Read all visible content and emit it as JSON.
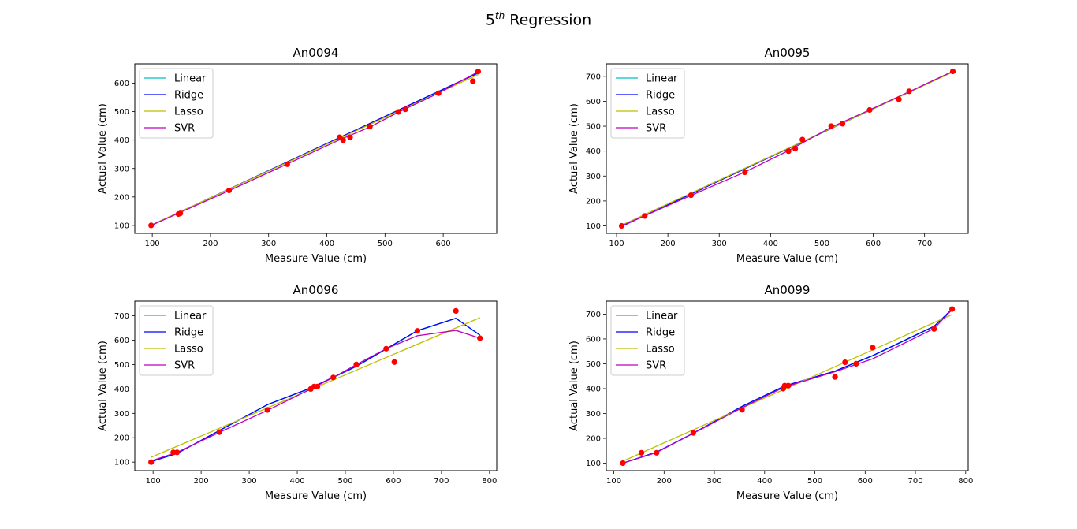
{
  "figure": {
    "title_base": "5",
    "title_sup": "th",
    "title_rest": " Regression"
  },
  "legend_items": [
    {
      "name": "Linear",
      "color": "#00BFBF"
    },
    {
      "name": "Ridge",
      "color": "#0000FF"
    },
    {
      "name": "Lasso",
      "color": "#BFBF00"
    },
    {
      "name": "SVR",
      "color": "#BF00BF"
    }
  ],
  "point_color": "#FF0000",
  "chart_data": [
    {
      "type": "line",
      "title": "An0094",
      "xlabel": "Measure Value (cm)",
      "ylabel": "Actual Value (cm)",
      "xlim": [
        70,
        692
      ],
      "ylim": [
        72,
        668
      ],
      "xticks": [
        100,
        200,
        300,
        400,
        500,
        600
      ],
      "yticks": [
        100,
        200,
        300,
        400,
        500,
        600
      ],
      "legend": "top-left",
      "scatter": {
        "x": [
          98,
          145,
          148,
          232,
          332,
          422,
          428,
          440,
          474,
          523,
          535,
          592,
          651,
          660
        ],
        "y": [
          100,
          140,
          142,
          223,
          315,
          410,
          400,
          410,
          447,
          499,
          508,
          565,
          607,
          641
        ]
      },
      "series": [
        {
          "name": "Linear",
          "x": [
            98,
            660
          ],
          "y": [
            100,
            635
          ]
        },
        {
          "name": "Ridge",
          "x": [
            98,
            660
          ],
          "y": [
            100,
            636
          ]
        },
        {
          "name": "Lasso",
          "x": [
            98,
            660
          ],
          "y": [
            101,
            630
          ]
        },
        {
          "name": "SVR",
          "x": [
            98,
            232,
            332,
            422,
            474,
            523,
            592,
            660
          ],
          "y": [
            100,
            222,
            316,
            401,
            446,
            498,
            565,
            640
          ]
        }
      ]
    },
    {
      "type": "line",
      "title": "An0095",
      "xlabel": "Measure Value (cm)",
      "ylabel": "Actual Value (cm)",
      "xlim": [
        80,
        785
      ],
      "ylim": [
        70,
        750
      ],
      "xticks": [
        100,
        200,
        300,
        400,
        500,
        600,
        700
      ],
      "yticks": [
        100,
        200,
        300,
        400,
        500,
        600,
        700
      ],
      "legend": "top-left",
      "scatter": {
        "x": [
          110,
          155,
          245,
          350,
          435,
          448,
          462,
          518,
          540,
          593,
          650,
          670,
          755
        ],
        "y": [
          100,
          140,
          223,
          315,
          400,
          410,
          446,
          500,
          510,
          565,
          608,
          640,
          720
        ]
      },
      "series": [
        {
          "name": "Linear",
          "x": [
            110,
            755
          ],
          "y": [
            98,
            718
          ]
        },
        {
          "name": "Ridge",
          "x": [
            110,
            755
          ],
          "y": [
            98,
            719
          ]
        },
        {
          "name": "Lasso",
          "x": [
            110,
            755
          ],
          "y": [
            103,
            717
          ]
        },
        {
          "name": "SVR",
          "x": [
            110,
            245,
            350,
            435,
            518,
            593,
            670,
            755
          ],
          "y": [
            100,
            222,
            316,
            402,
            496,
            565,
            638,
            720
          ]
        }
      ]
    },
    {
      "type": "line",
      "title": "An0096",
      "xlabel": "Measure Value (cm)",
      "ylabel": "Actual Value (cm)",
      "xlim": [
        62,
        815
      ],
      "ylim": [
        65,
        760
      ],
      "xticks": [
        100,
        200,
        300,
        400,
        500,
        600,
        700,
        800
      ],
      "yticks": [
        100,
        200,
        300,
        400,
        500,
        600,
        700
      ],
      "legend": "top-left",
      "scatter": {
        "x": [
          96,
          142,
          150,
          238,
          338,
          428,
          435,
          442,
          475,
          523,
          585,
          602,
          650,
          730,
          780
        ],
        "y": [
          100,
          140,
          140,
          223,
          314,
          400,
          410,
          410,
          447,
          500,
          565,
          510,
          638,
          720,
          608
        ]
      },
      "series": [
        {
          "name": "Linear",
          "x": [
            96,
            150,
            338,
            428,
            523,
            650,
            730,
            780
          ],
          "y": [
            102,
            135,
            335,
            403,
            492,
            638,
            690,
            620
          ]
        },
        {
          "name": "Ridge",
          "x": [
            96,
            150,
            338,
            428,
            523,
            650,
            730,
            780
          ],
          "y": [
            102,
            136,
            336,
            404,
            493,
            639,
            690,
            621
          ]
        },
        {
          "name": "Lasso",
          "x": [
            96,
            780
          ],
          "y": [
            120,
            692
          ]
        },
        {
          "name": "SVR",
          "x": [
            96,
            150,
            238,
            338,
            428,
            475,
            523,
            585,
            650,
            730,
            780
          ],
          "y": [
            105,
            140,
            222,
            312,
            400,
            447,
            500,
            565,
            618,
            640,
            608
          ]
        }
      ]
    },
    {
      "type": "line",
      "title": "An0099",
      "xlabel": "Measure Value (cm)",
      "ylabel": "Actual Value (cm)",
      "xlim": [
        85,
        805
      ],
      "ylim": [
        70,
        752
      ],
      "xticks": [
        100,
        200,
        300,
        400,
        500,
        600,
        700,
        800
      ],
      "yticks": [
        100,
        200,
        300,
        400,
        500,
        600,
        700
      ],
      "legend": "top-left",
      "scatter": {
        "x": [
          118,
          155,
          185,
          258,
          355,
          437,
          440,
          447,
          540,
          560,
          582,
          615,
          737,
          773
        ],
        "y": [
          100,
          142,
          142,
          222,
          315,
          400,
          412,
          412,
          447,
          506,
          500,
          565,
          640,
          720
        ]
      },
      "series": [
        {
          "name": "Linear",
          "x": [
            118,
            185,
            258,
            355,
            440,
            540,
            615,
            737,
            773
          ],
          "y": [
            100,
            145,
            220,
            328,
            410,
            470,
            532,
            650,
            720
          ]
        },
        {
          "name": "Ridge",
          "x": [
            118,
            185,
            258,
            355,
            440,
            540,
            615,
            737,
            773
          ],
          "y": [
            100,
            145,
            221,
            329,
            411,
            471,
            533,
            651,
            720
          ]
        },
        {
          "name": "Lasso",
          "x": [
            118,
            773
          ],
          "y": [
            108,
            698
          ]
        },
        {
          "name": "SVR",
          "x": [
            118,
            185,
            258,
            355,
            440,
            540,
            615,
            737,
            773
          ],
          "y": [
            100,
            143,
            220,
            323,
            407,
            468,
            520,
            642,
            718
          ]
        }
      ]
    }
  ]
}
